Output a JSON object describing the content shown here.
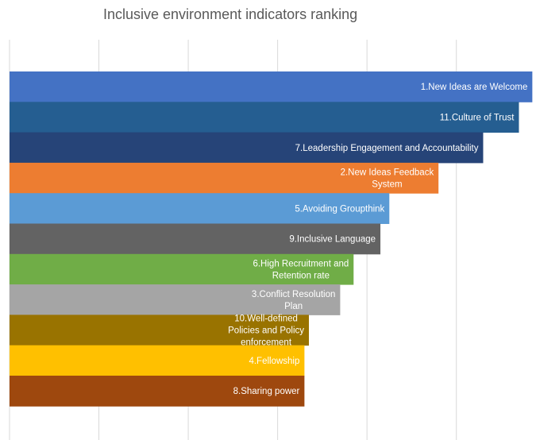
{
  "chart_data": {
    "type": "bar",
    "orientation": "horizontal",
    "title": "Inclusive environment indicators ranking",
    "xlabel": "",
    "ylabel": "",
    "grid": true,
    "legend": "none",
    "xlim": [
      0,
      5.9
    ],
    "categories": [
      "1.New Ideas are Welcome",
      "11.Culture of Trust",
      "7.Leadership Engagement and Accountability",
      "2.New Ideas Feedback System",
      "5.Avoiding Groupthink",
      "9.Inclusive Language",
      "6.High Recruitment and Retention rate",
      "3.Conflict Resolution Plan",
      "10.Well-defined Policies and Policy enforcement",
      "4.Fellowship",
      "8.Sharing power"
    ],
    "values": [
      5.85,
      5.7,
      5.3,
      4.8,
      4.25,
      4.15,
      3.85,
      3.7,
      3.35,
      3.3,
      3.3
    ],
    "colors": [
      "#4472c4",
      "#255e91",
      "#264478",
      "#ed7d31",
      "#5b9bd5",
      "#636363",
      "#70ad47",
      "#a5a5a5",
      "#997300",
      "#ffc000",
      "#9e480e"
    ]
  }
}
